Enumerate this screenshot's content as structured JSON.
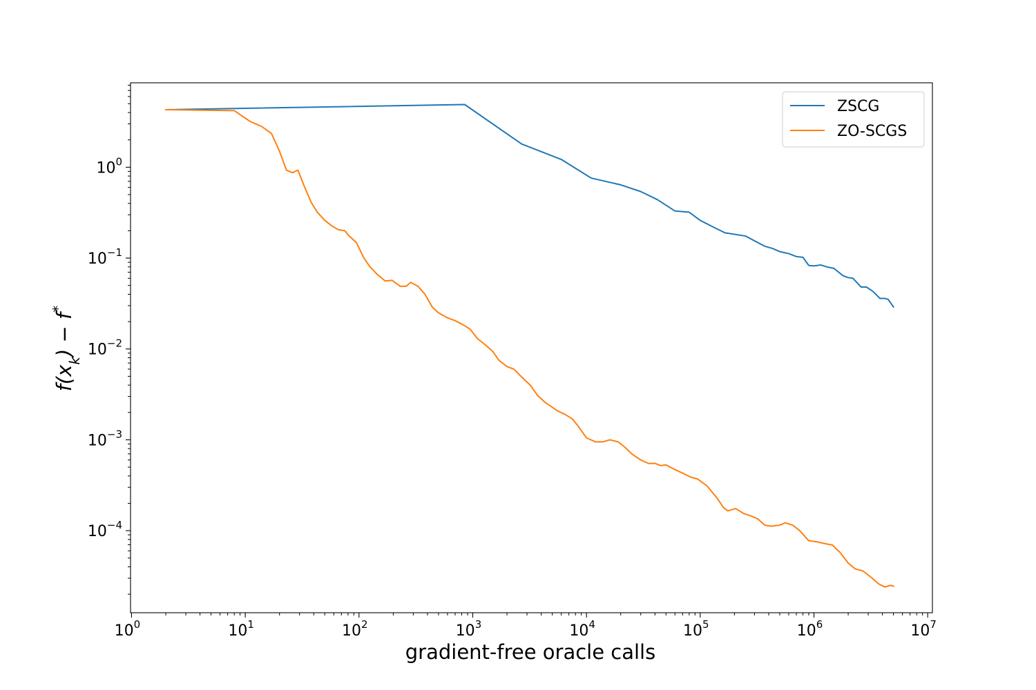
{
  "chart_data": {
    "type": "line",
    "title": "",
    "xlabel": "gradient-free oracle calls",
    "ylabel": "f(x_k) − f*",
    "xscale": "log",
    "yscale": "log",
    "xlim": [
      0.98,
      11000000
    ],
    "ylim": [
      1.25e-05,
      8.5
    ],
    "grid": false,
    "legend_position": "top-right",
    "x_ticks": [
      {
        "base": "10",
        "exp": "0",
        "value": 1
      },
      {
        "base": "10",
        "exp": "1",
        "value": 10
      },
      {
        "base": "10",
        "exp": "2",
        "value": 100
      },
      {
        "base": "10",
        "exp": "3",
        "value": 1000
      },
      {
        "base": "10",
        "exp": "4",
        "value": 10000
      },
      {
        "base": "10",
        "exp": "5",
        "value": 100000
      },
      {
        "base": "10",
        "exp": "6",
        "value": 1000000
      },
      {
        "base": "10",
        "exp": "7",
        "value": 10000000
      }
    ],
    "y_ticks": [
      {
        "base": "10",
        "exp": "0",
        "value": 1
      },
      {
        "base": "10",
        "exp": "−1",
        "value": 0.1
      },
      {
        "base": "10",
        "exp": "−2",
        "value": 0.01
      },
      {
        "base": "10",
        "exp": "−3",
        "value": 0.001
      },
      {
        "base": "10",
        "exp": "−4",
        "value": 0.0001
      }
    ],
    "series": [
      {
        "name": "ZSCG",
        "color": "#1f77b4",
        "points": [
          [
            2,
            4.3
          ],
          [
            850,
            4.9
          ],
          [
            2700,
            1.8
          ],
          [
            6000,
            1.22
          ],
          [
            11000,
            0.76
          ],
          [
            20000,
            0.64
          ],
          [
            30000,
            0.54
          ],
          [
            42000,
            0.44
          ],
          [
            60000,
            0.33
          ],
          [
            80000,
            0.32
          ],
          [
            100000,
            0.26
          ],
          [
            130000,
            0.22
          ],
          [
            165000,
            0.19
          ],
          [
            250000,
            0.175
          ],
          [
            300000,
            0.155
          ],
          [
            370000,
            0.135
          ],
          [
            430000,
            0.128
          ],
          [
            500000,
            0.118
          ],
          [
            600000,
            0.112
          ],
          [
            700000,
            0.104
          ],
          [
            800000,
            0.102
          ],
          [
            900000,
            0.083
          ],
          [
            1000000,
            0.082
          ],
          [
            1150000,
            0.084
          ],
          [
            1300000,
            0.08
          ],
          [
            1500000,
            0.077
          ],
          [
            1800000,
            0.064
          ],
          [
            2000000,
            0.061
          ],
          [
            2200000,
            0.06
          ],
          [
            2600000,
            0.048
          ],
          [
            2900000,
            0.048
          ],
          [
            3300000,
            0.043
          ],
          [
            3800000,
            0.036
          ],
          [
            4200000,
            0.036
          ],
          [
            4500000,
            0.035
          ],
          [
            5000000,
            0.029
          ]
        ]
      },
      {
        "name": "ZO-SCGS",
        "color": "#ff7f0e",
        "points": [
          [
            2,
            4.3
          ],
          [
            8,
            4.2
          ],
          [
            11,
            3.2
          ],
          [
            14,
            2.8
          ],
          [
            17,
            2.35
          ],
          [
            20,
            1.5
          ],
          [
            23,
            0.93
          ],
          [
            26,
            0.87
          ],
          [
            29,
            0.93
          ],
          [
            33,
            0.62
          ],
          [
            38,
            0.41
          ],
          [
            43,
            0.32
          ],
          [
            50,
            0.26
          ],
          [
            58,
            0.225
          ],
          [
            66,
            0.205
          ],
          [
            75,
            0.2
          ],
          [
            82,
            0.175
          ],
          [
            95,
            0.148
          ],
          [
            110,
            0.101
          ],
          [
            125,
            0.08
          ],
          [
            145,
            0.066
          ],
          [
            170,
            0.056
          ],
          [
            195,
            0.057
          ],
          [
            230,
            0.049
          ],
          [
            260,
            0.049
          ],
          [
            285,
            0.054
          ],
          [
            330,
            0.049
          ],
          [
            380,
            0.04
          ],
          [
            440,
            0.029
          ],
          [
            500,
            0.025
          ],
          [
            600,
            0.022
          ],
          [
            700,
            0.0205
          ],
          [
            820,
            0.0185
          ],
          [
            950,
            0.0165
          ],
          [
            1100,
            0.013
          ],
          [
            1300,
            0.011
          ],
          [
            1500,
            0.0094
          ],
          [
            1700,
            0.0075
          ],
          [
            2000,
            0.0064
          ],
          [
            2300,
            0.006
          ],
          [
            2700,
            0.0049
          ],
          [
            3200,
            0.004
          ],
          [
            3700,
            0.0031
          ],
          [
            4300,
            0.0026
          ],
          [
            5500,
            0.0021
          ],
          [
            6500,
            0.0019
          ],
          [
            7500,
            0.0017
          ],
          [
            8500,
            0.0014
          ],
          [
            10000,
            0.00105
          ],
          [
            12000,
            0.00095
          ],
          [
            14000,
            0.00095
          ],
          [
            16000,
            0.001
          ],
          [
            19000,
            0.00095
          ],
          [
            22000,
            0.00082
          ],
          [
            25000,
            0.0007
          ],
          [
            30000,
            0.0006
          ],
          [
            35000,
            0.00055
          ],
          [
            40000,
            0.00055
          ],
          [
            45000,
            0.00052
          ],
          [
            50000,
            0.00053
          ],
          [
            60000,
            0.00047
          ],
          [
            70000,
            0.00043
          ],
          [
            82000,
            0.00039
          ],
          [
            95000,
            0.00037
          ],
          [
            115000,
            0.00031
          ],
          [
            140000,
            0.00023
          ],
          [
            160000,
            0.00018
          ],
          [
            175000,
            0.000165
          ],
          [
            205000,
            0.000175
          ],
          [
            240000,
            0.000155
          ],
          [
            280000,
            0.000145
          ],
          [
            320000,
            0.000135
          ],
          [
            370000,
            0.000115
          ],
          [
            420000,
            0.000112
          ],
          [
            500000,
            0.000115
          ],
          [
            560000,
            0.000122
          ],
          [
            650000,
            0.000115
          ],
          [
            750000,
            0.0001
          ],
          [
            900000,
            7.75e-05
          ],
          [
            1050000,
            7.55e-05
          ],
          [
            1250000,
            7.2e-05
          ],
          [
            1450000,
            6.95e-05
          ],
          [
            1700000,
            5.75e-05
          ],
          [
            2000000,
            4.4e-05
          ],
          [
            2300000,
            3.8e-05
          ],
          [
            2700000,
            3.6e-05
          ],
          [
            3200000,
            3.05e-05
          ],
          [
            3700000,
            2.6e-05
          ],
          [
            4200000,
            2.4e-05
          ],
          [
            4700000,
            2.5e-05
          ],
          [
            5000000,
            2.45e-05
          ]
        ]
      }
    ]
  }
}
